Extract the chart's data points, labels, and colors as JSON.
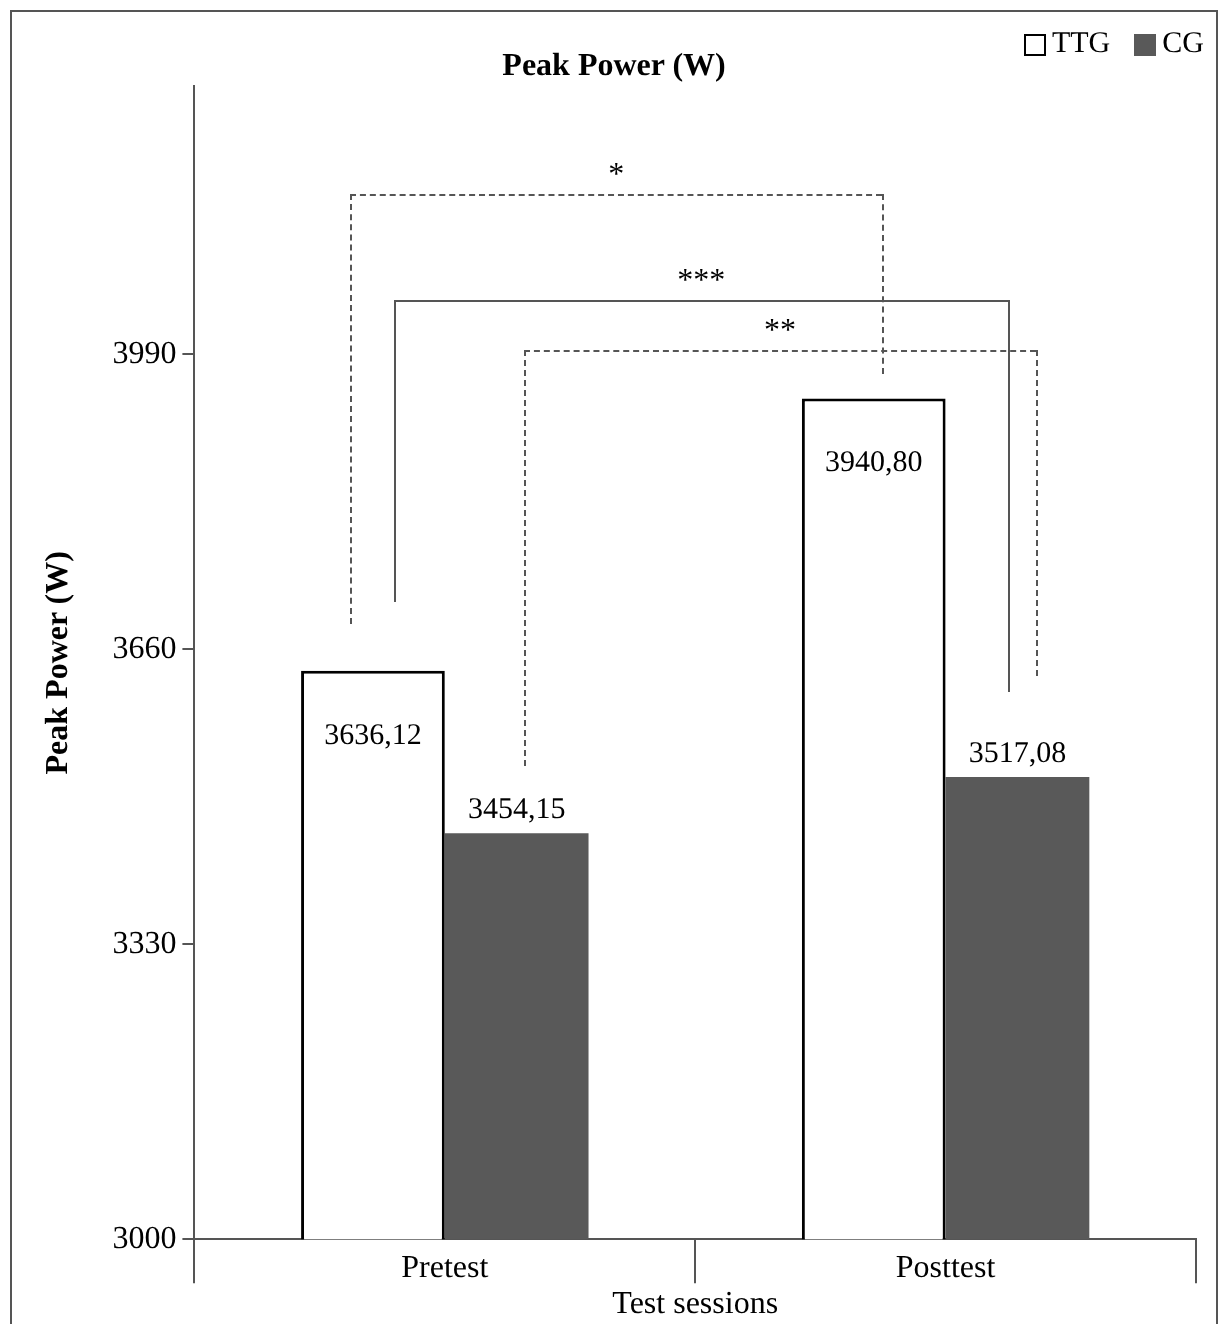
{
  "chart_data": {
    "type": "bar",
    "title": "Peak Power (W)",
    "xlabel": "Test sessions",
    "ylabel": "Peak Power (W)",
    "categories": [
      "Pretest",
      "Posttest"
    ],
    "series": [
      {
        "name": "TTG",
        "color": "#ffffff",
        "values": [
          3636.12,
          3940.8
        ],
        "value_labels": [
          "3636,12",
          "3940,80"
        ]
      },
      {
        "name": "CG",
        "color": "#595959",
        "values": [
          3454.15,
          3517.08
        ],
        "value_labels": [
          "3454,15",
          "3517,08"
        ]
      }
    ],
    "ylim": [
      3000,
      4290
    ],
    "yticks": [
      3000,
      3330,
      3660,
      3990
    ],
    "annotations": [
      "*",
      "***",
      "**"
    ],
    "legend": "top right",
    "grid": false
  }
}
